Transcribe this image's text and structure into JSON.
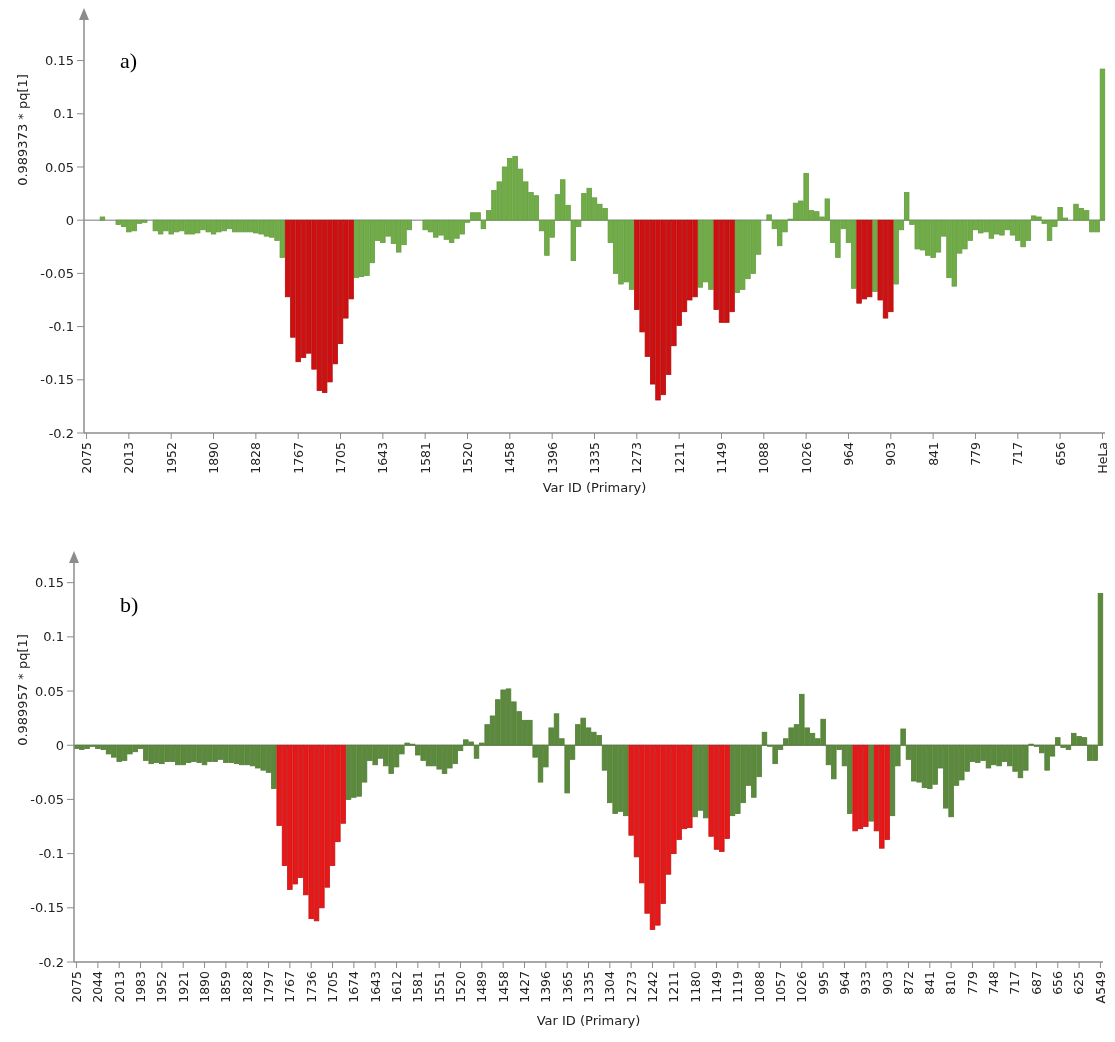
{
  "chart_data": [
    {
      "type": "bar",
      "ylabel": "0.989373 * pq[1]",
      "xlabel": "Var ID (Primary)",
      "annotations": [
        "a)"
      ],
      "ylim": [
        -0.2,
        0.19
      ],
      "yticks": [
        -0.2,
        -0.15,
        -0.1,
        -0.05,
        0,
        0.05,
        0.1,
        0.15
      ],
      "ref_lines": [
        {
          "axis": "y",
          "value": 0,
          "color": "#a6a6a6"
        }
      ],
      "categories": [
        "2075",
        null,
        null,
        null,
        null,
        null,
        null,
        null,
        "2013",
        null,
        null,
        null,
        null,
        null,
        null,
        null,
        "1952",
        null,
        null,
        null,
        null,
        null,
        null,
        null,
        "1890",
        null,
        null,
        null,
        null,
        null,
        null,
        null,
        "1828",
        null,
        null,
        null,
        null,
        null,
        null,
        null,
        "1767",
        null,
        null,
        null,
        null,
        null,
        null,
        null,
        "1705",
        null,
        null,
        null,
        null,
        null,
        null,
        null,
        "1643",
        null,
        null,
        null,
        null,
        null,
        null,
        null,
        "1581",
        null,
        null,
        null,
        null,
        null,
        null,
        null,
        "1520",
        null,
        null,
        null,
        null,
        null,
        null,
        null,
        "1458",
        null,
        null,
        null,
        null,
        null,
        null,
        null,
        "1396",
        null,
        null,
        null,
        null,
        null,
        null,
        null,
        "1335",
        null,
        null,
        null,
        null,
        null,
        null,
        null,
        "1273",
        null,
        null,
        null,
        null,
        null,
        null,
        null,
        "1211",
        null,
        null,
        null,
        null,
        null,
        null,
        null,
        "1149",
        null,
        null,
        null,
        null,
        null,
        null,
        null,
        "1088",
        null,
        null,
        null,
        null,
        null,
        null,
        null,
        "1026",
        null,
        null,
        null,
        null,
        null,
        null,
        null,
        "964",
        null,
        null,
        null,
        null,
        null,
        null,
        null,
        "903",
        null,
        null,
        null,
        null,
        null,
        null,
        null,
        "841",
        null,
        null,
        null,
        null,
        null,
        null,
        null,
        "779",
        null,
        null,
        null,
        null,
        null,
        null,
        null,
        "717",
        null,
        null,
        null,
        null,
        null,
        null,
        null,
        "656",
        null,
        null,
        null,
        null,
        null,
        null,
        null,
        "HeLa"
      ],
      "series": [
        {
          "color": "#70ad47",
          "values": [
            0,
            0,
            0,
            0.003,
            0,
            0,
            -0.004,
            -0.006,
            -0.011,
            -0.01,
            -0.003,
            -0.002,
            0,
            -0.01,
            -0.013,
            -0.01,
            -0.013,
            -0.011,
            -0.01,
            -0.013,
            -0.013,
            -0.012,
            -0.009,
            -0.011,
            -0.013,
            -0.011,
            -0.01,
            -0.008,
            -0.011,
            -0.011,
            -0.011,
            -0.011,
            -0.012,
            -0.013,
            -0.015,
            -0.016,
            -0.019,
            -0.035,
            null,
            null,
            null,
            null,
            null,
            null,
            null,
            null,
            null,
            null,
            null,
            null,
            null,
            -0.054,
            -0.053,
            -0.052,
            -0.04,
            -0.019,
            -0.021,
            -0.015,
            -0.022,
            -0.03,
            -0.023,
            -0.009,
            0,
            0,
            -0.009,
            -0.011,
            -0.016,
            -0.014,
            -0.018,
            -0.021,
            -0.017,
            -0.013,
            -0.002,
            0.007,
            0.007,
            -0.008,
            0.009,
            0.028,
            0.036,
            0.05,
            0.058,
            0.06,
            0.048,
            0.036,
            0.026,
            0.023,
            -0.01,
            -0.033,
            -0.016,
            0.024,
            0.038,
            0.014,
            -0.038,
            -0.006,
            0.025,
            0.03,
            0.021,
            0.015,
            0.011,
            -0.021,
            -0.05,
            -0.06,
            -0.058,
            -0.065,
            null,
            null,
            null,
            null,
            null,
            null,
            null,
            null,
            null,
            null,
            null,
            null,
            -0.063,
            -0.058,
            -0.065,
            null,
            null,
            null,
            null,
            -0.068,
            -0.065,
            -0.055,
            -0.05,
            -0.032,
            0,
            0.005,
            -0.008,
            -0.024,
            -0.011,
            0.001,
            0.016,
            0.018,
            0.044,
            0.009,
            0.008,
            0.003,
            0.02,
            -0.021,
            -0.035,
            -0.008,
            -0.021,
            -0.064,
            null,
            null,
            null,
            -0.067,
            null,
            null,
            null,
            -0.06,
            -0.009,
            0.026,
            -0.004,
            -0.027,
            -0.028,
            -0.033,
            -0.035,
            -0.03,
            -0.015,
            -0.054,
            -0.062,
            -0.031,
            -0.027,
            -0.019,
            -0.009,
            -0.012,
            -0.011,
            -0.017,
            -0.013,
            -0.014,
            -0.009,
            -0.014,
            -0.019,
            -0.025,
            -0.019,
            0.004,
            0.003,
            -0.003,
            -0.019,
            -0.006,
            0.012,
            0.002,
            0,
            0.015,
            0.011,
            0.009,
            -0.011,
            -0.011,
            0.142
          ]
        },
        {
          "color": "#d01010",
          "values": [
            null,
            null,
            null,
            null,
            null,
            null,
            null,
            null,
            null,
            null,
            null,
            null,
            null,
            null,
            null,
            null,
            null,
            null,
            null,
            null,
            null,
            null,
            null,
            null,
            null,
            null,
            null,
            null,
            null,
            null,
            null,
            null,
            null,
            null,
            null,
            null,
            null,
            null,
            -0.072,
            -0.11,
            -0.133,
            -0.129,
            -0.125,
            -0.14,
            -0.16,
            -0.162,
            -0.152,
            -0.135,
            -0.116,
            -0.092,
            -0.074,
            null,
            null,
            null,
            null,
            null,
            null,
            null,
            null,
            null,
            null,
            null,
            null,
            null,
            null,
            null,
            null,
            null,
            null,
            null,
            null,
            null,
            null,
            null,
            null,
            null,
            null,
            null,
            null,
            null,
            null,
            null,
            null,
            null,
            null,
            null,
            null,
            null,
            null,
            null,
            null,
            null,
            null,
            null,
            null,
            null,
            null,
            null,
            null,
            null,
            null,
            null,
            null,
            null,
            -0.084,
            -0.105,
            -0.128,
            -0.154,
            -0.169,
            -0.164,
            -0.145,
            -0.118,
            -0.099,
            -0.086,
            -0.075,
            -0.072,
            null,
            null,
            null,
            -0.084,
            -0.096,
            -0.096,
            -0.086,
            null,
            null,
            null,
            null,
            null,
            null,
            null,
            null,
            null,
            null,
            null,
            null,
            null,
            null,
            null,
            null,
            null,
            null,
            null,
            null,
            null,
            null,
            null,
            -0.078,
            -0.074,
            -0.072,
            null,
            -0.075,
            -0.092,
            -0.086,
            null,
            null,
            null,
            null,
            null,
            null,
            null,
            null,
            null,
            null,
            null,
            null,
            null,
            null,
            null,
            null,
            null,
            null,
            null,
            null,
            null,
            null,
            null,
            null,
            null,
            null,
            null,
            null,
            null,
            null,
            null,
            null,
            null,
            null,
            null,
            null,
            null,
            null,
            null,
            null
          ]
        }
      ]
    },
    {
      "type": "bar",
      "ylabel": "0.989957 * pq[1]",
      "xlabel": "Var ID (Primary)",
      "annotations": [
        "b)"
      ],
      "ylim": [
        -0.2,
        0.17
      ],
      "yticks": [
        -0.2,
        -0.15,
        -0.1,
        -0.05,
        0,
        0.05,
        0.1,
        0.15
      ],
      "ref_lines": [
        {
          "axis": "y",
          "value": 0,
          "color": "#a6a6a6"
        }
      ],
      "categories": [
        "2075",
        null,
        null,
        null,
        "2044",
        null,
        null,
        null,
        "2013",
        null,
        null,
        null,
        "1983",
        null,
        null,
        null,
        "1952",
        null,
        null,
        null,
        "1921",
        null,
        null,
        null,
        "1890",
        null,
        null,
        null,
        "1859",
        null,
        null,
        null,
        "1828",
        null,
        null,
        null,
        "1797",
        null,
        null,
        null,
        "1767",
        null,
        null,
        null,
        "1736",
        null,
        null,
        null,
        "1705",
        null,
        null,
        null,
        "1674",
        null,
        null,
        null,
        "1643",
        null,
        null,
        null,
        "1612",
        null,
        null,
        null,
        "1581",
        null,
        null,
        null,
        "1551",
        null,
        null,
        null,
        "1520",
        null,
        null,
        null,
        "1489",
        null,
        null,
        null,
        "1458",
        null,
        null,
        null,
        "1427",
        null,
        null,
        null,
        "1396",
        null,
        null,
        null,
        "1365",
        null,
        null,
        null,
        "1335",
        null,
        null,
        null,
        "1304",
        null,
        null,
        null,
        "1273",
        null,
        null,
        null,
        "1242",
        null,
        null,
        null,
        "1211",
        null,
        null,
        null,
        "1180",
        null,
        null,
        null,
        "1149",
        null,
        null,
        null,
        "1119",
        null,
        null,
        null,
        "1088",
        null,
        null,
        null,
        "1057",
        null,
        null,
        null,
        "1026",
        null,
        null,
        null,
        "995",
        null,
        null,
        null,
        "964",
        null,
        null,
        null,
        "933",
        null,
        null,
        null,
        "903",
        null,
        null,
        null,
        "872",
        null,
        null,
        null,
        "841",
        null,
        null,
        null,
        "810",
        null,
        null,
        null,
        "779",
        null,
        null,
        null,
        "748",
        null,
        null,
        null,
        "717",
        null,
        null,
        null,
        "687",
        null,
        null,
        null,
        "656",
        null,
        null,
        null,
        "625",
        null,
        null,
        null,
        "A549"
      ],
      "series": [
        {
          "color": "#5b8a3c",
          "values": [
            -0.003,
            -0.004,
            -0.003,
            -0.001,
            -0.003,
            -0.004,
            -0.008,
            -0.011,
            -0.015,
            -0.014,
            -0.008,
            -0.006,
            -0.003,
            -0.014,
            -0.017,
            -0.016,
            -0.017,
            -0.015,
            -0.015,
            -0.018,
            -0.018,
            -0.016,
            -0.015,
            -0.016,
            -0.018,
            -0.015,
            -0.015,
            -0.013,
            -0.016,
            -0.016,
            -0.017,
            -0.018,
            -0.018,
            -0.019,
            -0.021,
            -0.023,
            -0.025,
            -0.04,
            null,
            null,
            null,
            null,
            null,
            null,
            null,
            null,
            null,
            null,
            null,
            null,
            null,
            -0.05,
            -0.048,
            -0.047,
            -0.034,
            -0.014,
            -0.018,
            -0.012,
            -0.019,
            -0.026,
            -0.02,
            -0.008,
            0.002,
            0.001,
            -0.009,
            -0.014,
            -0.019,
            -0.019,
            -0.022,
            -0.026,
            -0.021,
            -0.017,
            -0.005,
            0.005,
            0.003,
            -0.012,
            0.002,
            0.019,
            0.027,
            0.042,
            0.051,
            0.052,
            0.04,
            0.031,
            0.023,
            0.023,
            -0.011,
            -0.034,
            -0.02,
            0.016,
            0.029,
            0.006,
            -0.044,
            -0.013,
            0.019,
            0.025,
            0.016,
            0.012,
            0.009,
            -0.023,
            -0.053,
            -0.063,
            -0.061,
            -0.065,
            null,
            null,
            null,
            null,
            null,
            null,
            null,
            null,
            null,
            null,
            null,
            null,
            -0.066,
            -0.06,
            -0.067,
            null,
            null,
            null,
            null,
            -0.065,
            -0.063,
            -0.053,
            -0.037,
            -0.048,
            -0.029,
            0.012,
            -0.001,
            -0.017,
            -0.004,
            0.006,
            0.016,
            0.019,
            0.047,
            0.016,
            0.011,
            0.006,
            0.024,
            -0.018,
            -0.031,
            -0.004,
            -0.019,
            -0.063,
            null,
            null,
            null,
            -0.07,
            null,
            null,
            null,
            -0.065,
            -0.019,
            0.015,
            -0.013,
            -0.033,
            -0.034,
            -0.039,
            -0.04,
            -0.036,
            -0.021,
            -0.058,
            -0.066,
            -0.037,
            -0.032,
            -0.024,
            -0.015,
            -0.016,
            -0.014,
            -0.021,
            -0.018,
            -0.019,
            -0.015,
            -0.019,
            -0.024,
            -0.03,
            -0.023,
            0.001,
            -0.001,
            -0.007,
            -0.023,
            -0.01,
            0.007,
            -0.002,
            -0.004,
            0.011,
            0.008,
            0.007,
            -0.014,
            -0.014,
            0.14
          ]
        },
        {
          "color": "#e81818",
          "values": [
            null,
            null,
            null,
            null,
            null,
            null,
            null,
            null,
            null,
            null,
            null,
            null,
            null,
            null,
            null,
            null,
            null,
            null,
            null,
            null,
            null,
            null,
            null,
            null,
            null,
            null,
            null,
            null,
            null,
            null,
            null,
            null,
            null,
            null,
            null,
            null,
            null,
            null,
            -0.074,
            -0.111,
            -0.133,
            -0.128,
            -0.122,
            -0.138,
            -0.16,
            -0.162,
            -0.15,
            -0.131,
            -0.111,
            -0.089,
            -0.072,
            null,
            null,
            null,
            null,
            null,
            null,
            null,
            null,
            null,
            null,
            null,
            null,
            null,
            null,
            null,
            null,
            null,
            null,
            null,
            null,
            null,
            null,
            null,
            null,
            null,
            null,
            null,
            null,
            null,
            null,
            null,
            null,
            null,
            null,
            null,
            null,
            null,
            null,
            null,
            null,
            null,
            null,
            null,
            null,
            null,
            null,
            null,
            null,
            null,
            null,
            null,
            null,
            null,
            -0.083,
            -0.103,
            -0.127,
            -0.155,
            -0.17,
            -0.166,
            -0.146,
            -0.119,
            -0.1,
            -0.087,
            -0.077,
            -0.076,
            null,
            null,
            null,
            -0.084,
            -0.096,
            -0.098,
            -0.086,
            null,
            null,
            null,
            null,
            null,
            null,
            null,
            null,
            null,
            null,
            null,
            null,
            null,
            null,
            null,
            null,
            null,
            null,
            null,
            null,
            null,
            null,
            null,
            -0.079,
            -0.077,
            -0.075,
            null,
            -0.079,
            -0.095,
            -0.087,
            null,
            null,
            null,
            null,
            null,
            null,
            null,
            null,
            null,
            null,
            null,
            null,
            null,
            null,
            null,
            null,
            null,
            null,
            null,
            null,
            null,
            null,
            null,
            null,
            null,
            null,
            null,
            null,
            null,
            null,
            null,
            null,
            null,
            null,
            null,
            null,
            null,
            null,
            null,
            null
          ]
        }
      ]
    }
  ]
}
